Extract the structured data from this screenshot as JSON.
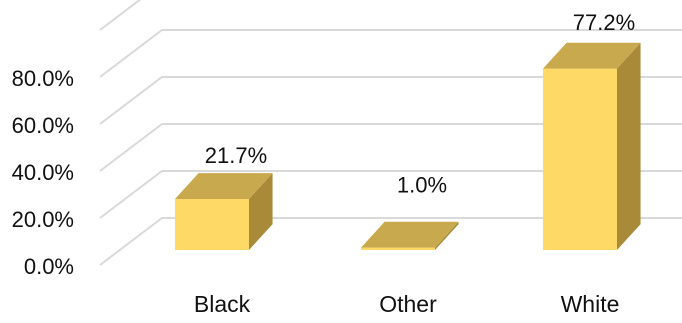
{
  "chart_data": {
    "type": "bar",
    "categories": [
      "Black",
      "Other",
      "White"
    ],
    "values": [
      21.7,
      1.0,
      77.2
    ],
    "data_labels": [
      "21.7%",
      "1.0%",
      "77.2%"
    ],
    "y_ticks": [
      {
        "value": 0,
        "label": "0.0%"
      },
      {
        "value": 20,
        "label": "20.0%"
      },
      {
        "value": 40,
        "label": "40.0%"
      },
      {
        "value": 60,
        "label": "60.0%"
      },
      {
        "value": 80,
        "label": "80.0%"
      }
    ],
    "ylim": [
      0,
      100
    ],
    "grid": true,
    "legend": "none",
    "style": "3d",
    "colors": {
      "front": "#FFD966",
      "top": "#C9A94E",
      "side": "#A88A38",
      "grid": "#D9D9D9"
    }
  }
}
